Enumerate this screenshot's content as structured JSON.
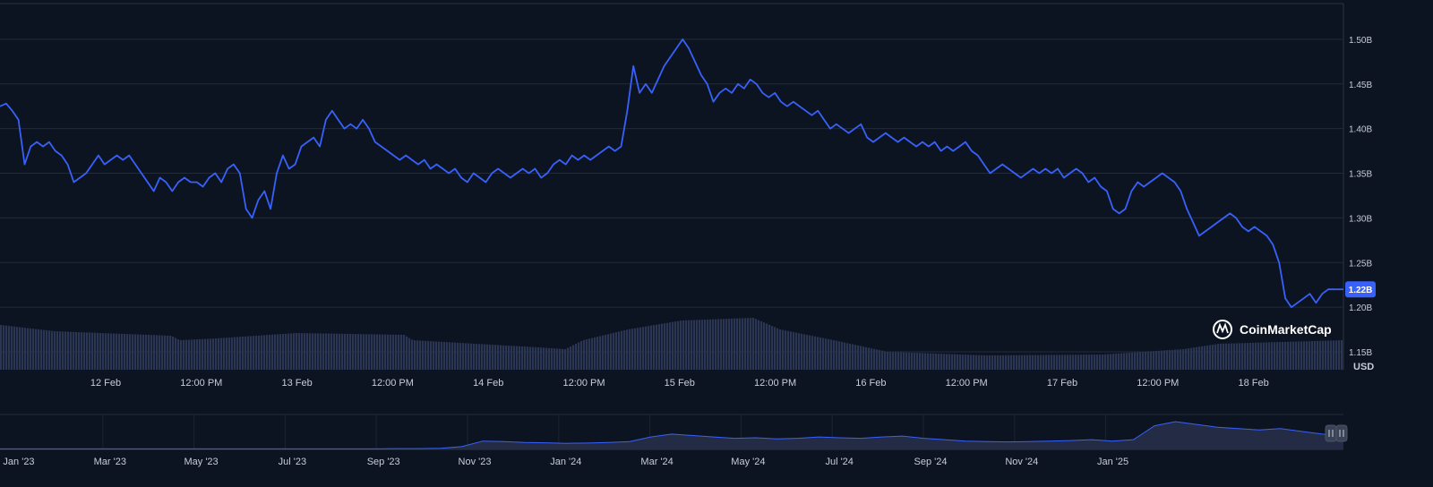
{
  "chart_data": [
    {
      "type": "line",
      "title": "",
      "unit": "USD",
      "ylim": [
        1.13,
        1.54
      ],
      "y_ticks": [
        {
          "value": 1.15,
          "label": "1.15B"
        },
        {
          "value": 1.2,
          "label": "1.20B"
        },
        {
          "value": 1.25,
          "label": "1.25B"
        },
        {
          "value": 1.3,
          "label": "1.30B"
        },
        {
          "value": 1.35,
          "label": "1.35B"
        },
        {
          "value": 1.4,
          "label": "1.40B"
        },
        {
          "value": 1.45,
          "label": "1.45B"
        },
        {
          "value": 1.5,
          "label": "1.50B"
        }
      ],
      "x_ticks": [
        "12 Feb",
        "12:00 PM",
        "13 Feb",
        "12:00 PM",
        "14 Feb",
        "12:00 PM",
        "15 Feb",
        "12:00 PM",
        "16 Feb",
        "12:00 PM",
        "17 Feb",
        "12:00 PM",
        "18 Feb"
      ],
      "current_value_label": "1.22B",
      "series": [
        {
          "color": "#3861fb",
          "values": [
            1.425,
            1.428,
            1.42,
            1.41,
            1.36,
            1.38,
            1.385,
            1.38,
            1.385,
            1.375,
            1.37,
            1.36,
            1.34,
            1.345,
            1.35,
            1.36,
            1.37,
            1.36,
            1.365,
            1.37,
            1.365,
            1.37,
            1.36,
            1.35,
            1.34,
            1.33,
            1.345,
            1.34,
            1.33,
            1.34,
            1.345,
            1.34,
            1.34,
            1.335,
            1.345,
            1.35,
            1.34,
            1.355,
            1.36,
            1.35,
            1.31,
            1.3,
            1.32,
            1.33,
            1.31,
            1.35,
            1.37,
            1.355,
            1.36,
            1.38,
            1.385,
            1.39,
            1.38,
            1.41,
            1.42,
            1.41,
            1.4,
            1.405,
            1.4,
            1.41,
            1.4,
            1.385,
            1.38,
            1.375,
            1.37,
            1.365,
            1.37,
            1.365,
            1.36,
            1.365,
            1.355,
            1.36,
            1.355,
            1.35,
            1.355,
            1.345,
            1.34,
            1.35,
            1.345,
            1.34,
            1.35,
            1.355,
            1.35,
            1.345,
            1.35,
            1.355,
            1.35,
            1.355,
            1.345,
            1.35,
            1.36,
            1.365,
            1.36,
            1.37,
            1.365,
            1.37,
            1.365,
            1.37,
            1.375,
            1.38,
            1.375,
            1.38,
            1.42,
            1.47,
            1.44,
            1.45,
            1.44,
            1.455,
            1.47,
            1.48,
            1.49,
            1.5,
            1.49,
            1.475,
            1.46,
            1.45,
            1.43,
            1.44,
            1.445,
            1.44,
            1.45,
            1.445,
            1.455,
            1.45,
            1.44,
            1.435,
            1.44,
            1.43,
            1.425,
            1.43,
            1.425,
            1.42,
            1.415,
            1.42,
            1.41,
            1.4,
            1.405,
            1.4,
            1.395,
            1.4,
            1.405,
            1.39,
            1.385,
            1.39,
            1.395,
            1.39,
            1.385,
            1.39,
            1.385,
            1.38,
            1.385,
            1.38,
            1.385,
            1.375,
            1.38,
            1.375,
            1.38,
            1.385,
            1.375,
            1.37,
            1.36,
            1.35,
            1.355,
            1.36,
            1.355,
            1.35,
            1.345,
            1.35,
            1.355,
            1.35,
            1.355,
            1.35,
            1.355,
            1.345,
            1.35,
            1.355,
            1.35,
            1.34,
            1.345,
            1.335,
            1.33,
            1.31,
            1.305,
            1.31,
            1.33,
            1.34,
            1.335,
            1.34,
            1.345,
            1.35,
            1.345,
            1.34,
            1.33,
            1.31,
            1.295,
            1.28,
            1.285,
            1.29,
            1.295,
            1.3,
            1.305,
            1.3,
            1.29,
            1.285,
            1.29,
            1.285,
            1.28,
            1.27,
            1.25,
            1.21,
            1.2,
            1.205,
            1.21,
            1.215,
            1.205,
            1.215,
            1.22,
            1.22
          ]
        }
      ]
    },
    {
      "type": "area",
      "title": "",
      "x_ticks": [
        "Jan '23",
        "Mar '23",
        "May '23",
        "Jul '23",
        "Sep '23",
        "Nov '23",
        "Jan '24",
        "Mar '24",
        "May '24",
        "Jul '24",
        "Sep '24",
        "Nov '24",
        "Jan '25"
      ],
      "series": [
        {
          "color": "#3861fb",
          "values": [
            0.02,
            0.02,
            0.02,
            0.02,
            0.02,
            0.02,
            0.02,
            0.02,
            0.02,
            0.02,
            0.02,
            0.02,
            0.02,
            0.02,
            0.02,
            0.02,
            0.02,
            0.02,
            0.02,
            0.03,
            0.03,
            0.04,
            0.1,
            0.3,
            0.28,
            0.25,
            0.24,
            0.22,
            0.23,
            0.25,
            0.28,
            0.45,
            0.55,
            0.5,
            0.45,
            0.4,
            0.42,
            0.38,
            0.4,
            0.45,
            0.42,
            0.4,
            0.45,
            0.48,
            0.4,
            0.35,
            0.3,
            0.28,
            0.27,
            0.28,
            0.3,
            0.32,
            0.35,
            0.3,
            0.35,
            0.85,
            1.0,
            0.9,
            0.8,
            0.75,
            0.7,
            0.75,
            0.65,
            0.55,
            0.5
          ]
        }
      ]
    }
  ],
  "watermark": {
    "brand": "CoinMarketCap"
  },
  "navigator": {
    "handle_icons": [
      "pause-icon",
      "pause-icon"
    ]
  }
}
